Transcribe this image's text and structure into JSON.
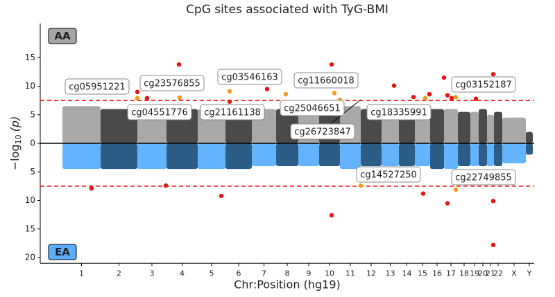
{
  "chart_data": {
    "type": "miami",
    "title": "CpG sites associated with TyG-BMI",
    "y_label": {
      "text": "−log",
      "sub": "10",
      "rest": "(p)"
    },
    "x_label": "Chr:Position (hg19)",
    "panel_labels": {
      "top": "AA",
      "bottom": "EA"
    },
    "panel_colors": {
      "top": "#a6a6a6",
      "bottom": "#5aaefc"
    },
    "xlim": [
      0,
      712
    ],
    "ylim": [
      -21,
      21
    ],
    "yticks": [
      {
        "value": 15,
        "label": "15"
      },
      {
        "value": 10,
        "label": "10"
      },
      {
        "value": 5,
        "label": "5"
      },
      0,
      {
        "value": -5,
        "label": "5"
      },
      {
        "value": -10,
        "label": "10"
      },
      {
        "value": -15,
        "label": "15"
      },
      {
        "value": -20,
        "label": "20"
      }
    ],
    "xticks": [
      {
        "value": 59.5,
        "label": "1"
      },
      {
        "value": 113.5,
        "label": "2"
      },
      {
        "value": 161,
        "label": "3"
      },
      {
        "value": 204.5,
        "label": "4"
      },
      {
        "value": 247,
        "label": "5"
      },
      {
        "value": 286,
        "label": "6"
      },
      {
        "value": 322.5,
        "label": "7"
      },
      {
        "value": 356,
        "label": "8"
      },
      {
        "value": 387,
        "label": "9"
      },
      {
        "value": 417,
        "label": "10"
      },
      {
        "value": 447,
        "label": "11"
      },
      {
        "value": 477,
        "label": "12"
      },
      {
        "value": 504.5,
        "label": "13"
      },
      {
        "value": 528.5,
        "label": "14"
      },
      {
        "value": 551,
        "label": "15"
      },
      {
        "value": 572,
        "label": "16"
      },
      {
        "value": 592,
        "label": "17"
      },
      {
        "value": 611,
        "label": "18"
      },
      {
        "value": 626,
        "label": "19"
      },
      {
        "value": 638,
        "label": "20"
      },
      {
        "value": 649,
        "label": "21"
      },
      {
        "value": 660,
        "label": "22"
      },
      {
        "value": 683,
        "label": "X"
      },
      {
        "value": 705,
        "label": "Y"
      }
    ],
    "chromosomes": {
      "start": [
        32,
        87,
        140,
        182,
        227,
        267,
        305,
        340,
        372,
        402,
        432,
        462,
        492,
        517,
        540,
        562,
        582,
        602,
        620,
        632,
        644,
        654,
        666,
        700
      ],
      "end": [
        87,
        140,
        182,
        227,
        267,
        305,
        340,
        372,
        402,
        432,
        462,
        492,
        517,
        540,
        562,
        582,
        602,
        620,
        632,
        644,
        654,
        666,
        700,
        710
      ],
      "aa_max": [
        6.5,
        6,
        6,
        6,
        6,
        6,
        6,
        6,
        5.5,
        6,
        6.5,
        6,
        5,
        5.5,
        5,
        6,
        6,
        5.5,
        5.5,
        6,
        5,
        5.5,
        4.5,
        2
      ],
      "ea_min": [
        -4.5,
        -4.5,
        -4.5,
        -4.5,
        -4.5,
        -4.5,
        -4,
        -4,
        -4,
        -4,
        -4.5,
        -4,
        -4,
        -4,
        -4,
        -4.5,
        -4.5,
        -4,
        -4,
        -4,
        -4,
        -4,
        -3.5,
        -2
      ]
    },
    "cloud_colors": {
      "top": [
        "#a9a9a9",
        "#4a4a4a"
      ],
      "bottom": [
        "#63b3ff",
        "#2c5d87"
      ]
    },
    "thresholds": [
      7.5,
      -7.5
    ],
    "threshold_color": "#ff0000",
    "series": [
      {
        "color": "#ee1111",
        "x": [
          140,
          154,
          200,
          273,
          327,
          420,
          510,
          538,
          561,
          582,
          587,
          593,
          628,
          653,
          74,
          181,
          261,
          420,
          552,
          587,
          653,
          653
        ],
        "values": [
          9.0,
          7.9,
          13.8,
          7.3,
          9.5,
          13.8,
          10.1,
          8.1,
          8.6,
          11.5,
          8.4,
          7.9,
          7.8,
          12.1,
          -7.9,
          -7.4,
          -9.2,
          -12.6,
          -8.8,
          -10.5,
          -10.1,
          -17.8
        ]
      },
      {
        "color": "#f59a16",
        "x": [
          140,
          201,
          273,
          354,
          424,
          432,
          555,
          599,
          462,
          599
        ],
        "values": [
          7.9,
          8.0,
          9.1,
          8.6,
          8.8,
          7.6,
          7.9,
          8.1,
          -7.4,
          -8.1
        ]
      }
    ],
    "annotations": [
      "cg05951221",
      "cg23576855",
      "cg03546163",
      "cg11660018",
      "cg03152187",
      "cg04551776",
      "cg21161138",
      "cg25046651",
      "cg18335991",
      "cg26723847",
      "cg14527250",
      "cg22749855"
    ]
  }
}
